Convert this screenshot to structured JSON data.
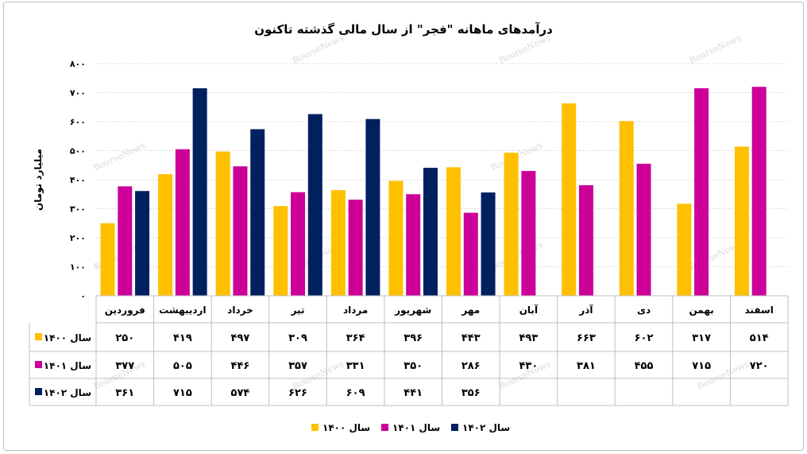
{
  "chart_data": {
    "type": "bar",
    "title": "درآمدهای ماهانه \"فجر\" از سال مالی گذشته تاکنون",
    "ylabel": "میلیارد تومان",
    "ylim": [
      0,
      800
    ],
    "yticks": [
      "۰",
      "۱۰۰",
      "۲۰۰",
      "۳۰۰",
      "۴۰۰",
      "۵۰۰",
      "۶۰۰",
      "۷۰۰",
      "۸۰۰"
    ],
    "categories": [
      "فروردین",
      "اردیبهشت",
      "خرداد",
      "تیر",
      "مرداد",
      "شهریور",
      "مهر",
      "آبان",
      "آذر",
      "دی",
      "بهمن",
      "اسفند"
    ],
    "series": [
      {
        "name": "سال ۱۴۰۰",
        "color": "#FFC000",
        "values": [
          250,
          419,
          497,
          309,
          364,
          396,
          443,
          493,
          663,
          602,
          317,
          514
        ],
        "labels": [
          "۲۵۰",
          "۴۱۹",
          "۴۹۷",
          "۳۰۹",
          "۳۶۴",
          "۳۹۶",
          "۴۴۳",
          "۴۹۳",
          "۶۶۳",
          "۶۰۲",
          "۳۱۷",
          "۵۱۴"
        ]
      },
      {
        "name": "سال ۱۴۰۱",
        "color": "#CC0099",
        "values": [
          377,
          505,
          446,
          357,
          331,
          350,
          286,
          430,
          381,
          455,
          715,
          720
        ],
        "labels": [
          "۳۷۷",
          "۵۰۵",
          "۴۴۶",
          "۳۵۷",
          "۳۳۱",
          "۳۵۰",
          "۲۸۶",
          "۴۳۰",
          "۳۸۱",
          "۴۵۵",
          "۷۱۵",
          "۷۲۰"
        ]
      },
      {
        "name": "سال ۱۴۰۲",
        "color": "#002060",
        "values": [
          361,
          715,
          574,
          626,
          609,
          441,
          356,
          null,
          null,
          null,
          null,
          null
        ],
        "labels": [
          "۳۶۱",
          "۷۱۵",
          "۵۷۴",
          "۶۲۶",
          "۶۰۹",
          "۴۴۱",
          "۳۵۶",
          "",
          "",
          "",
          "",
          ""
        ]
      }
    ],
    "grid": true,
    "legend_position": "bottom"
  },
  "watermark": "BourseNews"
}
